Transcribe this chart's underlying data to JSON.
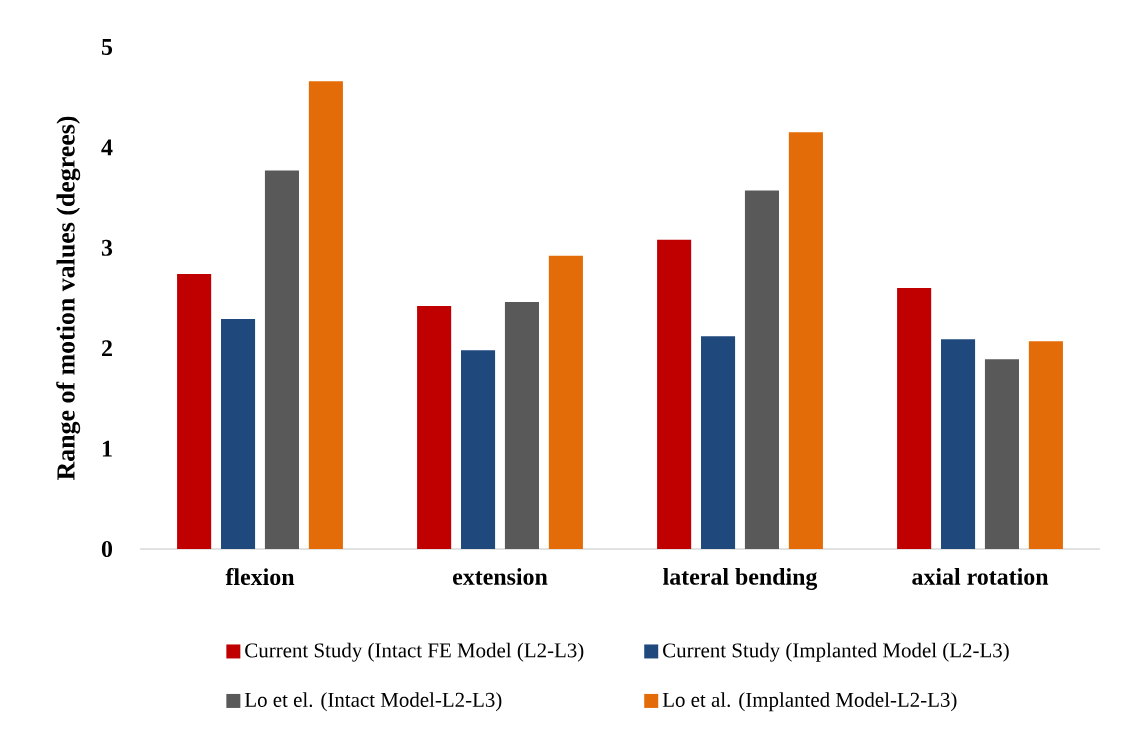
{
  "chart_data": {
    "type": "bar",
    "ylabel": "Range of motion values (degrees)",
    "categories": [
      "flexion",
      "extension",
      "lateral bending",
      "axial rotation"
    ],
    "series": [
      {
        "name": "Current Study (Intact FE Model (L2-L3)",
        "color": "#c00000",
        "values": [
          2.74,
          2.42,
          3.08,
          2.6
        ]
      },
      {
        "name": "Current Study (Implanted Model (L2-L3)",
        "color": "#1f497d",
        "values": [
          2.29,
          1.98,
          2.12,
          2.09
        ]
      },
      {
        "name": "Lo et el. (Intact Model-L2-L3)",
        "color": "#595959",
        "values": [
          3.77,
          2.46,
          3.57,
          1.89
        ]
      },
      {
        "name": "Lo et al. (Implanted Model-L2-L3)",
        "color": "#e36c09",
        "values": [
          4.66,
          2.92,
          4.15,
          2.07
        ]
      }
    ],
    "ylim": [
      0,
      5
    ],
    "yticks": [
      0,
      1,
      2,
      3,
      4,
      5
    ],
    "grid": false,
    "legend": "bottom"
  }
}
